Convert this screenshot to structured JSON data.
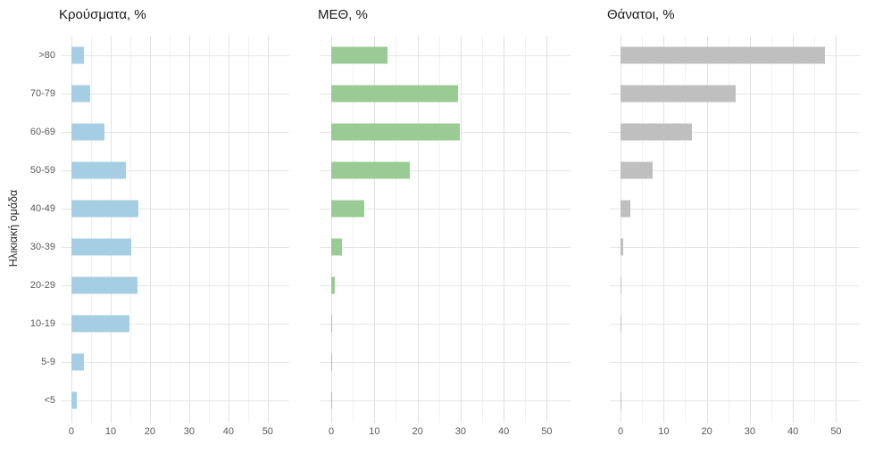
{
  "figure": {
    "y_axis_title": "Ηλικιακή ομάδα"
  },
  "chart_data": [
    {
      "type": "bar",
      "orientation": "horizontal",
      "title": "Κρούσματα, %",
      "categories": [
        ">80",
        "70-79",
        "60-69",
        "50-59",
        "40-49",
        "30-39",
        "20-29",
        "10-19",
        "5-9",
        "<5"
      ],
      "values": [
        3.3,
        4.7,
        8.5,
        13.8,
        17.1,
        15.2,
        16.9,
        14.9,
        3.3,
        1.4
      ],
      "bar_color": "#a6cee3",
      "x_ticks": [
        0,
        10,
        20,
        30,
        40,
        50
      ],
      "gridline_step": 5,
      "xlim": [
        0,
        53
      ],
      "grid": "on",
      "legend": "none"
    },
    {
      "type": "bar",
      "orientation": "horizontal",
      "title": "ΜΕΘ, %",
      "categories": [
        ">80",
        "70-79",
        "60-69",
        "50-59",
        "40-49",
        "30-39",
        "20-29",
        "10-19",
        "5-9",
        "<5"
      ],
      "values": [
        13.0,
        29.3,
        29.8,
        18.2,
        7.6,
        2.5,
        0.8,
        0.25,
        0.15,
        0.15
      ],
      "bar_color": "#9acb94",
      "x_ticks": [
        0,
        10,
        20,
        30,
        40,
        50
      ],
      "gridline_step": 5,
      "xlim": [
        0,
        53
      ],
      "grid": "on",
      "legend": "none"
    },
    {
      "type": "bar",
      "orientation": "horizontal",
      "title": "Θάνατοι, %",
      "categories": [
        ">80",
        "70-79",
        "60-69",
        "50-59",
        "40-49",
        "30-39",
        "20-29",
        "10-19",
        "5-9",
        "<5"
      ],
      "values": [
        47.5,
        26.8,
        16.6,
        7.4,
        2.3,
        0.7,
        0.15,
        0.1,
        0,
        0.1
      ],
      "bar_color": "#bfbfbf",
      "x_ticks": [
        0,
        10,
        20,
        30,
        40,
        50
      ],
      "gridline_step": 5,
      "xlim": [
        0,
        53
      ],
      "grid": "on",
      "legend": "none"
    }
  ]
}
